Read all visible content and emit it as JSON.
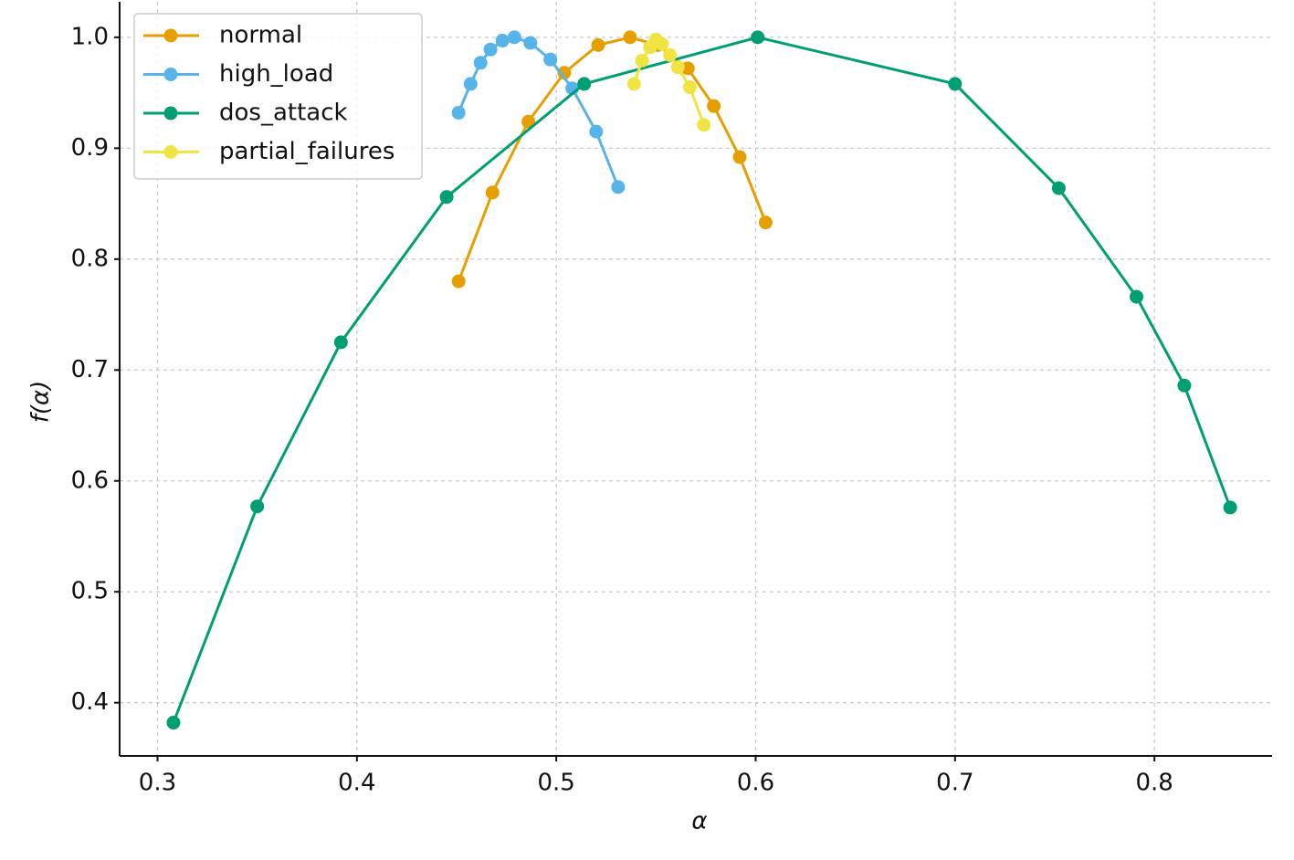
{
  "chart_data": {
    "type": "line",
    "x_label": "α",
    "y_label": "f(α)",
    "xlim": [
      0.281,
      0.859
    ],
    "ylim": [
      0.352,
      1.032
    ],
    "xticks": [
      0.3,
      0.4,
      0.5,
      0.6,
      0.7,
      0.8
    ],
    "yticks": [
      0.4,
      0.5,
      0.6,
      0.7,
      0.8,
      0.9,
      {
        "value": 1,
        "label": "1.0"
      }
    ],
    "grid": true,
    "legend": "upper left",
    "series": [
      {
        "name": "normal",
        "color": "#E69F00",
        "x": [
          0.451,
          0.468,
          0.486,
          0.504,
          0.521,
          0.537,
          0.551,
          0.566,
          0.579,
          0.592,
          0.605
        ],
        "values": [
          0.78,
          0.86,
          0.924,
          0.968,
          0.993,
          1.0,
          0.993,
          0.972,
          0.938,
          0.892,
          0.833
        ]
      },
      {
        "name": "high_load",
        "color": "#56B4E9",
        "x": [
          0.451,
          0.457,
          0.462,
          0.467,
          0.473,
          0.479,
          0.487,
          0.497,
          0.508,
          0.52,
          0.531
        ],
        "values": [
          0.932,
          0.958,
          0.977,
          0.989,
          0.997,
          1.0,
          0.995,
          0.98,
          0.954,
          0.915,
          0.865
        ]
      },
      {
        "name": "dos_attack",
        "color": "#009E73",
        "x": [
          0.308,
          0.35,
          0.392,
          0.445,
          0.514,
          0.601,
          0.7,
          0.752,
          0.791,
          0.815,
          0.838
        ],
        "values": [
          0.382,
          0.577,
          0.725,
          0.856,
          0.958,
          1.0,
          0.958,
          0.864,
          0.766,
          0.686,
          0.576
        ]
      },
      {
        "name": "partial_failures",
        "color": "#F0E442",
        "x": [
          0.539,
          0.543,
          0.547,
          0.55,
          0.553,
          0.557,
          0.561,
          0.567,
          0.574
        ],
        "values": [
          0.958,
          0.979,
          0.991,
          0.998,
          0.994,
          0.984,
          0.973,
          0.955,
          0.921
        ]
      }
    ]
  }
}
